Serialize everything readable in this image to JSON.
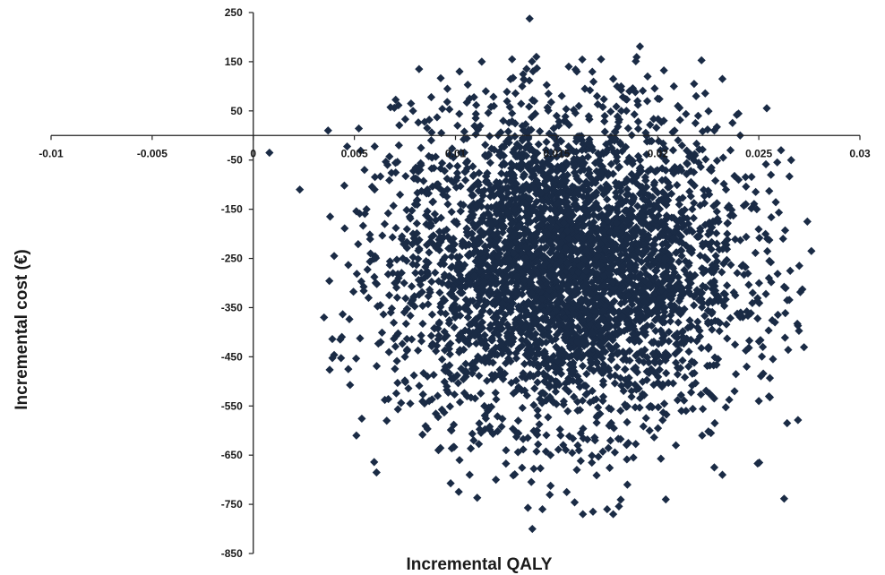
{
  "chart_data": {
    "type": "scatter",
    "title": "",
    "xlabel": "Incremental QALY",
    "ylabel": "Incremental cost (€)",
    "xlim": [
      -0.01,
      0.03
    ],
    "ylim": [
      -850,
      250
    ],
    "x_ticks": [
      -0.01,
      -0.005,
      0,
      0.005,
      0.01,
      0.015,
      0.02,
      0.025,
      0.03
    ],
    "x_tick_labels": [
      "-0.01",
      "-0.005",
      "0",
      "0.005",
      "0.01",
      "0.015",
      "0.02",
      "0.025",
      "0.03"
    ],
    "y_ticks": [
      250,
      150,
      50,
      -50,
      -150,
      -250,
      -350,
      -450,
      -550,
      -650,
      -750,
      -850
    ],
    "y_tick_labels": [
      "250",
      "150",
      "50",
      "-50",
      "-150",
      "-250",
      "-350",
      "-450",
      "-550",
      "-650",
      "-750",
      "-850"
    ],
    "grid": false,
    "legend": "none",
    "series": [
      {
        "marker": "diamond",
        "color": "#1a2b45",
        "points": [
          [
            0.0008,
            -35
          ],
          [
            0.0023,
            -110
          ],
          [
            0.0037,
            10
          ],
          [
            0.0038,
            -165
          ],
          [
            0.004,
            -245
          ],
          [
            0.0043,
            -415
          ],
          [
            0.0047,
            -475
          ],
          [
            0.0051,
            -610
          ],
          [
            0.0035,
            -370
          ],
          [
            0.0066,
            -580
          ],
          [
            0.0072,
            -20
          ],
          [
            0.0082,
            135
          ],
          [
            0.0078,
            65
          ],
          [
            0.0079,
            50
          ],
          [
            0.0096,
            95
          ],
          [
            0.0102,
            130
          ],
          [
            0.0113,
            150
          ],
          [
            0.0128,
            155
          ],
          [
            0.014,
            160
          ],
          [
            0.0156,
            140
          ],
          [
            0.016,
            130
          ],
          [
            0.0172,
            155
          ],
          [
            0.0178,
            115
          ],
          [
            0.0195,
            120
          ],
          [
            0.0208,
            100
          ],
          [
            0.0218,
            105
          ],
          [
            0.0219,
            80
          ],
          [
            0.0232,
            115
          ],
          [
            0.0256,
            -80
          ],
          [
            0.0261,
            -30
          ],
          [
            0.0266,
            -50
          ],
          [
            0.0274,
            -175
          ],
          [
            0.0276,
            -235
          ],
          [
            0.027,
            -265
          ],
          [
            0.0264,
            -585
          ],
          [
            0.025,
            -540
          ],
          [
            0.0232,
            -690
          ],
          [
            0.0228,
            -675
          ],
          [
            0.0204,
            -740
          ],
          [
            0.0185,
            -710
          ],
          [
            0.0178,
            -770
          ],
          [
            0.0175,
            -760
          ],
          [
            0.0168,
            -765
          ],
          [
            0.0163,
            -770
          ],
          [
            0.0155,
            -725
          ],
          [
            0.0143,
            -760
          ],
          [
            0.0138,
            -800
          ],
          [
            0.012,
            -700
          ],
          [
            0.0107,
            -690
          ],
          [
            0.0102,
            -660
          ],
          [
            0.0087,
            -540
          ],
          [
            0.0075,
            -450
          ],
          [
            0.007,
            -300
          ],
          [
            0.0063,
            -420
          ],
          [
            0.0057,
            -330
          ],
          [
            0.0058,
            -240
          ],
          [
            0.0056,
            -150
          ],
          [
            0.0055,
            -70
          ],
          [
            0.006,
            -110
          ],
          [
            0.0065,
            -180
          ],
          [
            0.0068,
            -360
          ],
          [
            0.0074,
            -250
          ],
          [
            0.008,
            -140
          ],
          [
            0.0083,
            -60
          ],
          [
            0.0088,
            -10
          ],
          [
            0.0092,
            -380
          ],
          [
            0.0095,
            -470
          ],
          [
            0.0098,
            -600
          ],
          [
            0.0109,
            -620
          ],
          [
            0.0116,
            -560
          ],
          [
            0.0125,
            -640
          ],
          [
            0.0131,
            -580
          ],
          [
            0.0147,
            -650
          ],
          [
            0.0152,
            -610
          ],
          [
            0.016,
            -680
          ],
          [
            0.0169,
            -620
          ],
          [
            0.0176,
            -590
          ],
          [
            0.0188,
            -655
          ],
          [
            0.0196,
            -600
          ],
          [
            0.0209,
            -630
          ],
          [
            0.0214,
            -560
          ],
          [
            0.0222,
            -610
          ],
          [
            0.0238,
            -520
          ],
          [
            0.0244,
            -470
          ],
          [
            0.0252,
            -430
          ],
          [
            0.0258,
            -380
          ],
          [
            0.0247,
            -320
          ],
          [
            0.0255,
            -290
          ],
          [
            0.0262,
            -210
          ],
          [
            0.0249,
            -150
          ],
          [
            0.024,
            -90
          ],
          [
            0.0236,
            -30
          ],
          [
            0.0228,
            10
          ],
          [
            0.022,
            40
          ],
          [
            0.021,
            60
          ],
          [
            0.0203,
            30
          ],
          [
            0.019,
            70
          ],
          [
            0.0182,
            50
          ],
          [
            0.017,
            80
          ],
          [
            0.0161,
            60
          ],
          [
            0.015,
            40
          ],
          [
            0.0139,
            70
          ],
          [
            0.0128,
            45
          ],
          [
            0.0119,
            60
          ],
          [
            0.011,
            35
          ],
          [
            0.0101,
            20
          ],
          [
            0.0093,
            5
          ],
          [
            0.0086,
            15
          ],
          [
            0.0115,
            90
          ],
          [
            0.0133,
            100
          ],
          [
            0.0146,
            85
          ],
          [
            0.0164,
            95
          ],
          [
            0.0186,
            90
          ],
          [
            0.02,
            75
          ],
          [
            0.0107,
            75
          ]
        ]
      }
    ],
    "cloud": {
      "center": [
        0.0155,
        -270
      ],
      "sd": [
        0.0042,
        155
      ],
      "count": 3800
    }
  }
}
